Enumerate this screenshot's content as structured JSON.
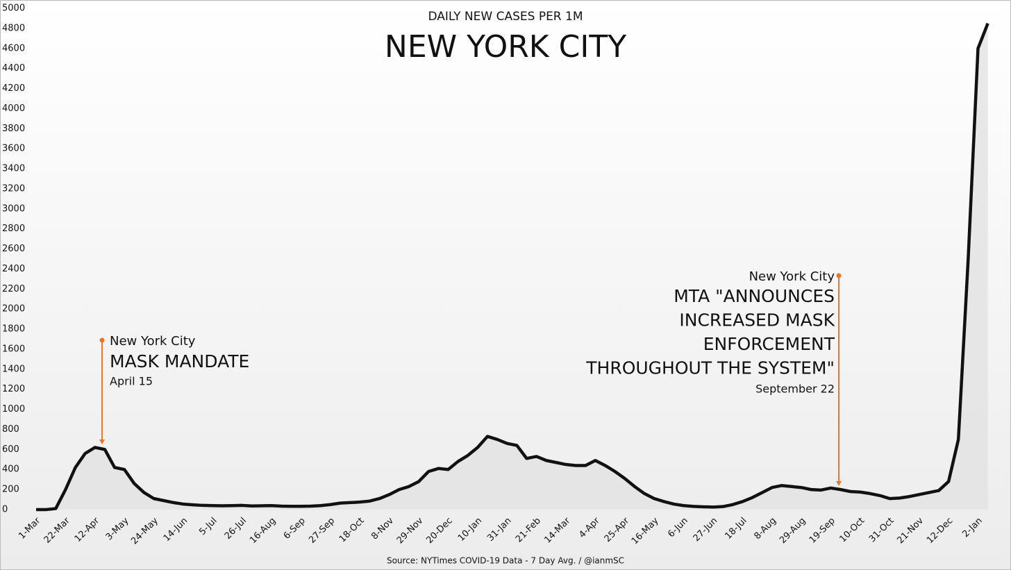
{
  "chart_data": {
    "type": "line",
    "subtitle": "DAILY NEW CASES PER 1M",
    "title": "NEW YORK CITY",
    "source": "Source: NYTimes COVID-19 Data - 7 Day Avg. / @ianmSC",
    "color": "#111111",
    "categories": [
      "1-Mar",
      null,
      null,
      "22-Mar",
      null,
      null,
      "12-Apr",
      null,
      null,
      "3-May",
      null,
      null,
      "24-May",
      null,
      null,
      "14-Jun",
      null,
      null,
      "5-Jul",
      null,
      null,
      "26-Jul",
      null,
      null,
      "16-Aug",
      null,
      null,
      "6-Sep",
      null,
      null,
      "27-Sep",
      null,
      null,
      "18-Oct",
      null,
      null,
      "8-Nov",
      null,
      null,
      "29-Nov",
      null,
      null,
      "20-Dec",
      null,
      null,
      "10-Jan",
      null,
      null,
      "31-Jan",
      null,
      null,
      "21-Feb",
      null,
      null,
      "14-Mar",
      null,
      null,
      "4-Apr",
      null,
      null,
      "25-Apr",
      null,
      null,
      "16-May",
      null,
      null,
      "6-Jun",
      null,
      null,
      "27-Jun",
      null,
      null,
      "18-Jul",
      null,
      null,
      "8-Aug",
      null,
      null,
      "29-Aug",
      null,
      null,
      "19-Sep",
      null,
      null,
      "10-Oct",
      null,
      null,
      "31-Oct",
      null,
      null,
      "21-Nov",
      null,
      null,
      "12-Dec",
      null,
      null,
      "2-Jan",
      null
    ],
    "values": [
      0,
      0,
      10,
      200,
      420,
      560,
      620,
      600,
      420,
      400,
      260,
      170,
      110,
      90,
      70,
      55,
      48,
      42,
      40,
      38,
      40,
      42,
      36,
      38,
      40,
      35,
      33,
      33,
      35,
      40,
      50,
      65,
      70,
      75,
      85,
      110,
      150,
      200,
      230,
      280,
      380,
      410,
      400,
      480,
      540,
      620,
      730,
      700,
      660,
      640,
      510,
      530,
      490,
      470,
      450,
      440,
      440,
      490,
      440,
      380,
      310,
      230,
      160,
      110,
      80,
      55,
      40,
      32,
      28,
      25,
      30,
      50,
      80,
      120,
      170,
      220,
      240,
      230,
      220,
      200,
      195,
      215,
      200,
      180,
      175,
      160,
      140,
      110,
      115,
      130,
      150,
      170,
      190,
      280,
      700,
      2500,
      4600,
      4850
    ],
    "ylim": [
      0,
      5000
    ],
    "yticks": [
      0,
      200,
      400,
      600,
      800,
      1000,
      1200,
      1400,
      1600,
      1800,
      2000,
      2200,
      2400,
      2600,
      2800,
      3000,
      3200,
      3400,
      3600,
      3800,
      4000,
      4200,
      4400,
      4600,
      4800,
      5000
    ],
    "grid": false,
    "annotations": [
      {
        "place": "New York City",
        "headline": [
          "MASK MANDATE"
        ],
        "date": "April 15",
        "color": "#e8772e"
      },
      {
        "place": "New York City",
        "headline": [
          "MTA \"ANNOUNCES",
          "INCREASED MASK",
          "ENFORCEMENT",
          "THROUGHOUT THE SYSTEM\""
        ],
        "date": "September 22",
        "color": "#e8772e"
      }
    ]
  }
}
